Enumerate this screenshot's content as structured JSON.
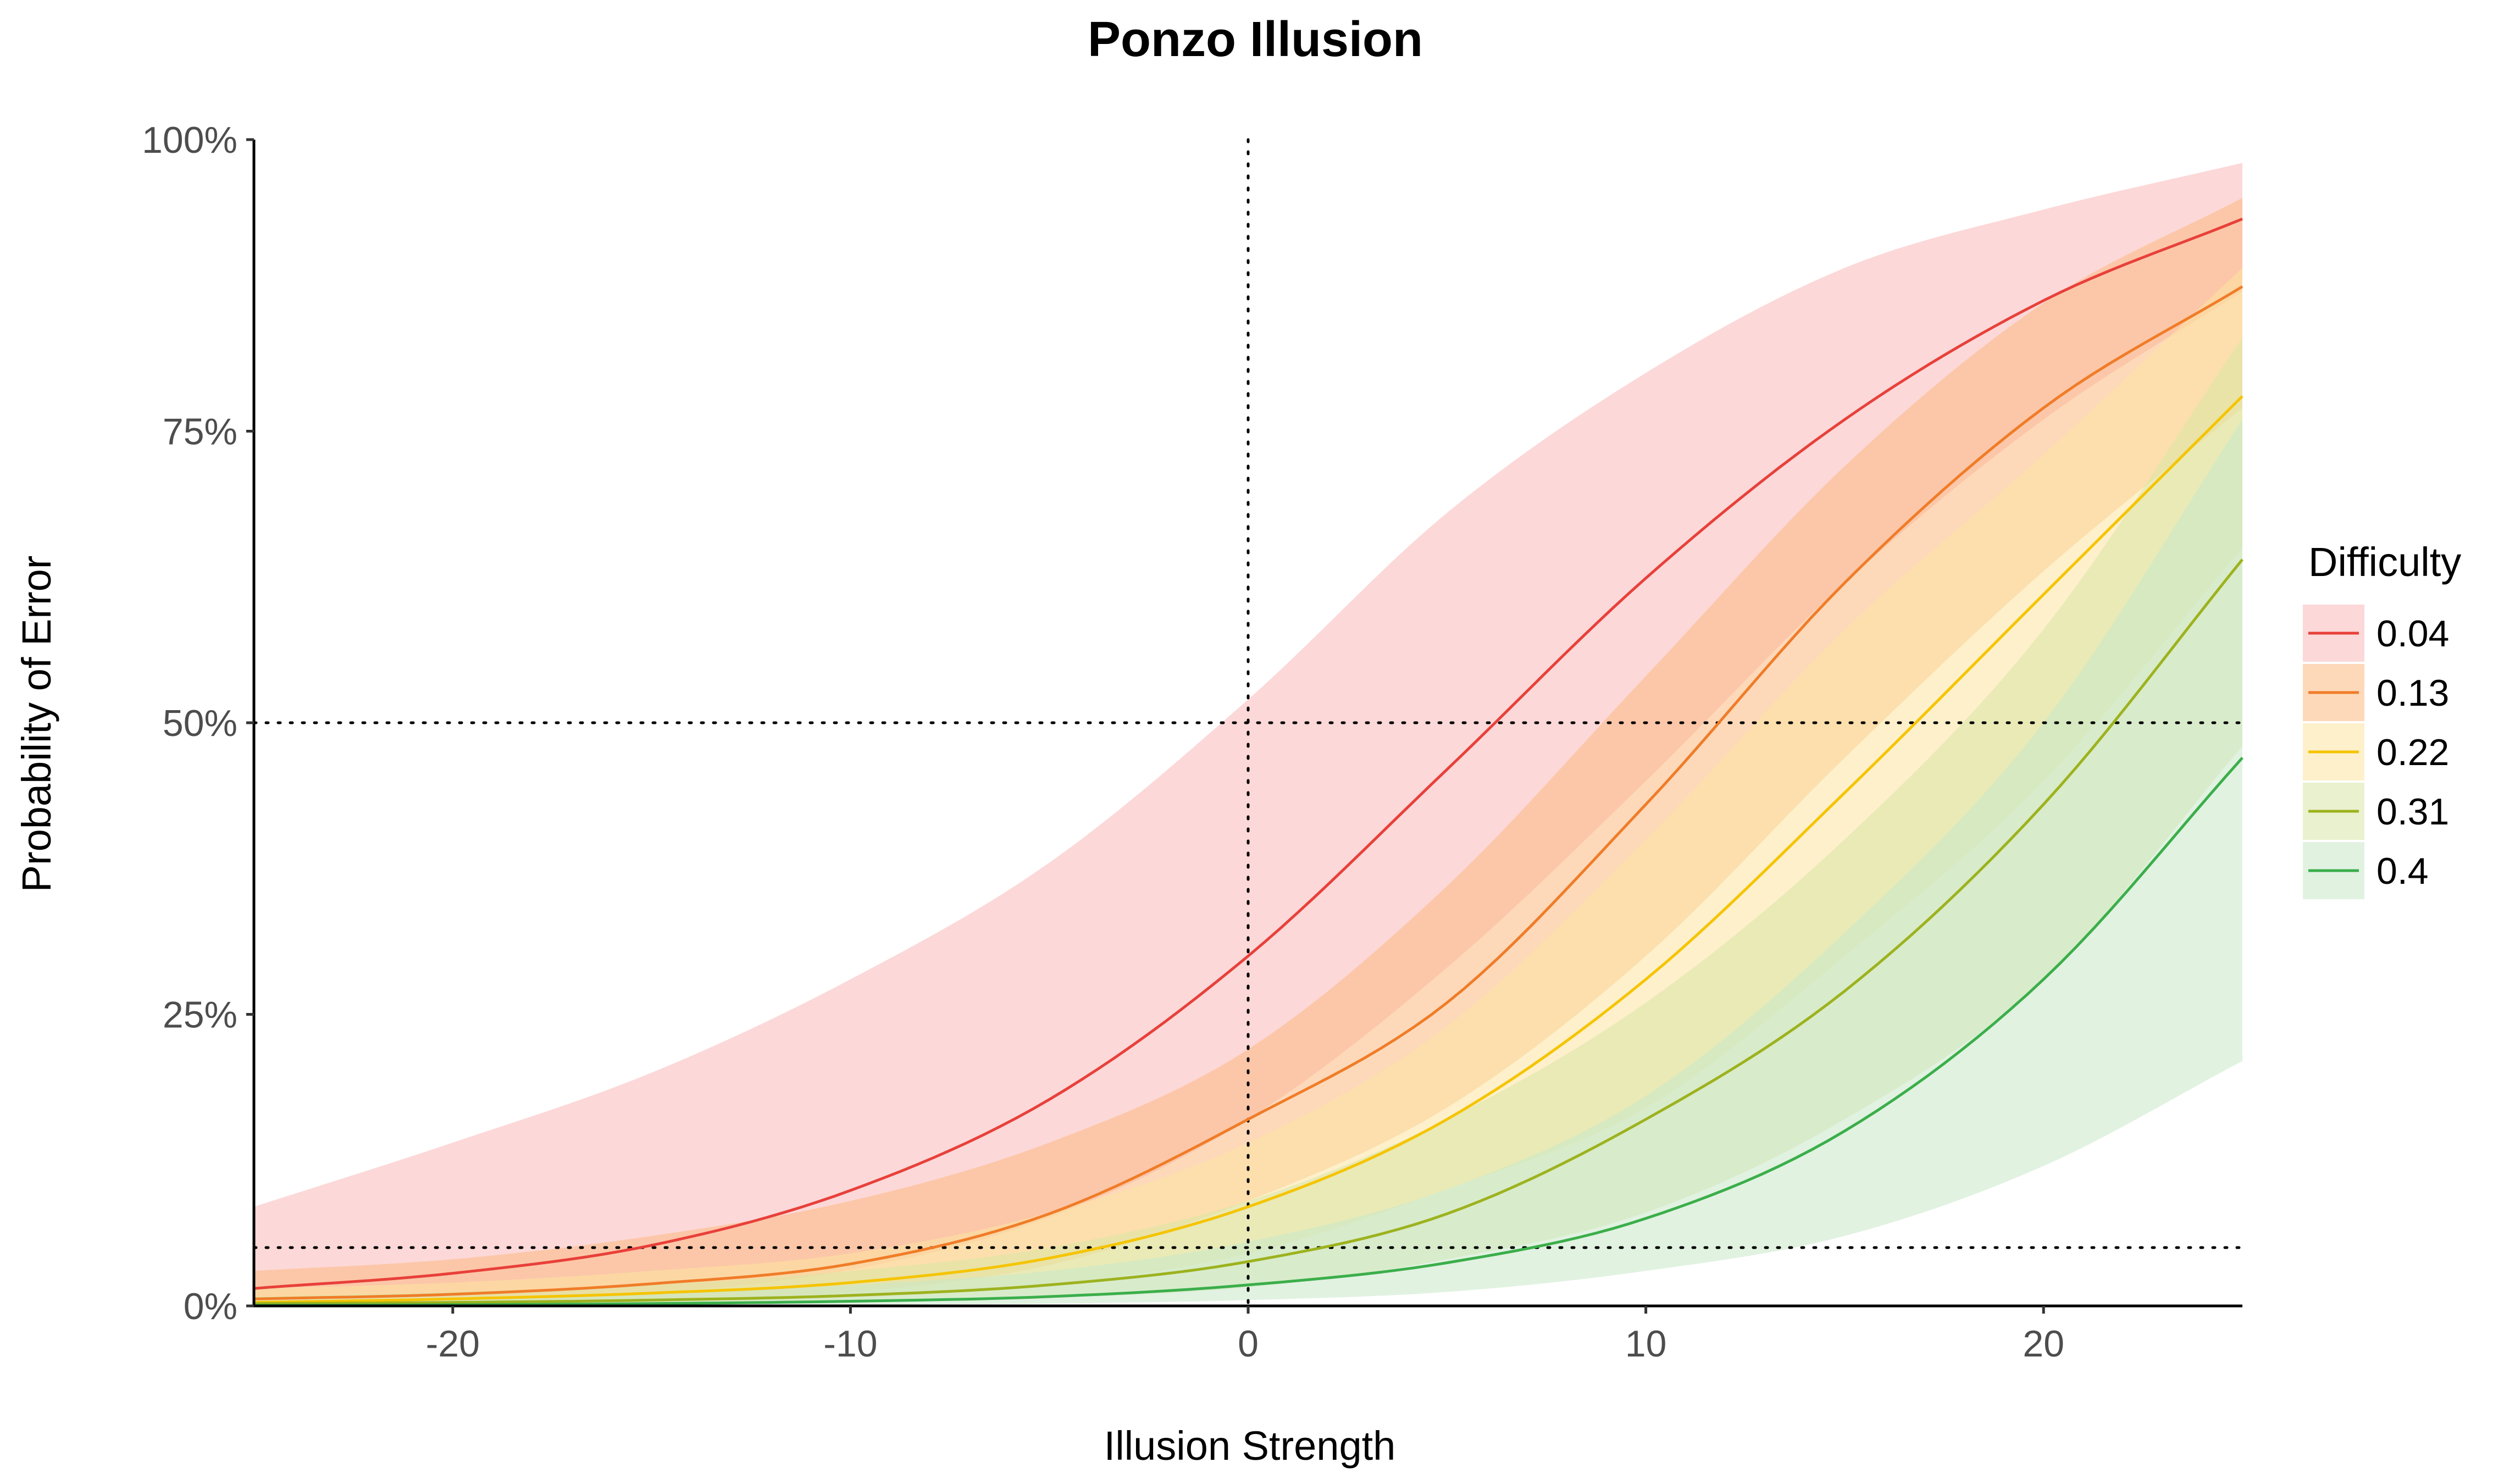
{
  "chart_data": {
    "type": "line",
    "title": "Ponzo Illusion",
    "xlabel": "Illusion Strength",
    "ylabel": "Probability of Error",
    "xlim": [
      -25,
      25
    ],
    "ylim": [
      0,
      1
    ],
    "x_ticks": [
      {
        "value": -20,
        "label": "-20"
      },
      {
        "value": -10,
        "label": "-10"
      },
      {
        "value": 0,
        "label": "0"
      },
      {
        "value": 10,
        "label": "10"
      },
      {
        "value": 20,
        "label": "20"
      }
    ],
    "y_ticks": [
      {
        "value": 0,
        "label": "0%"
      },
      {
        "value": 0.25,
        "label": "25%"
      },
      {
        "value": 0.5,
        "label": "50%"
      },
      {
        "value": 0.75,
        "label": "75%"
      },
      {
        "value": 1,
        "label": "100%"
      }
    ],
    "reference_lines": {
      "vertical": [
        0
      ],
      "horizontal": [
        0.5,
        0.05
      ],
      "style": "dotted"
    },
    "grid": false,
    "legend": {
      "title": "Difficulty",
      "position": "right"
    },
    "x": [
      -25,
      -20,
      -15,
      -10,
      -5,
      0,
      5,
      10,
      15,
      20,
      25
    ],
    "series": [
      {
        "name": "0.04",
        "color": "#e8403a",
        "fill": "#f9b8b8",
        "values": [
          0.015,
          0.028,
          0.052,
          0.099,
          0.177,
          0.3,
          0.46,
          0.624,
          0.76,
          0.862,
          0.932
        ],
        "lower": [
          0.001,
          0.004,
          0.011,
          0.031,
          0.076,
          0.16,
          0.29,
          0.45,
          0.62,
          0.76,
          0.87
        ],
        "upper": [
          0.085,
          0.14,
          0.2,
          0.28,
          0.38,
          0.52,
          0.68,
          0.8,
          0.89,
          0.94,
          0.98
        ]
      },
      {
        "name": "0.13",
        "color": "#f07c28",
        "fill": "#fbb982",
        "values": [
          0.006,
          0.01,
          0.019,
          0.036,
          0.079,
          0.16,
          0.26,
          0.43,
          0.62,
          0.77,
          0.874
        ],
        "lower": [
          0.001,
          0.002,
          0.006,
          0.012,
          0.035,
          0.09,
          0.17,
          0.3,
          0.47,
          0.63,
          0.77
        ],
        "upper": [
          0.03,
          0.04,
          0.06,
          0.09,
          0.14,
          0.22,
          0.36,
          0.54,
          0.72,
          0.86,
          0.95
        ]
      },
      {
        "name": "0.22",
        "color": "#f5c400",
        "fill": "#fbe3a0",
        "values": [
          0.003,
          0.006,
          0.011,
          0.02,
          0.041,
          0.085,
          0.16,
          0.28,
          0.44,
          0.61,
          0.78
        ],
        "lower": [
          0.0005,
          0.001,
          0.003,
          0.007,
          0.018,
          0.045,
          0.1,
          0.17,
          0.3,
          0.45,
          0.65
        ],
        "upper": [
          0.015,
          0.02,
          0.03,
          0.045,
          0.08,
          0.14,
          0.24,
          0.4,
          0.58,
          0.73,
          0.89
        ]
      },
      {
        "name": "0.31",
        "color": "#9db21e",
        "fill": "#d9e5a6",
        "values": [
          0.002,
          0.003,
          0.005,
          0.009,
          0.018,
          0.038,
          0.079,
          0.16,
          0.27,
          0.43,
          0.64
        ],
        "lower": [
          0.0002,
          0.0005,
          0.001,
          0.003,
          0.007,
          0.016,
          0.04,
          0.08,
          0.16,
          0.28,
          0.48
        ],
        "upper": [
          0.008,
          0.012,
          0.018,
          0.03,
          0.05,
          0.09,
          0.16,
          0.26,
          0.4,
          0.58,
          0.83
        ]
      },
      {
        "name": "0.4",
        "color": "#3bae4a",
        "fill": "#c9e7c8",
        "values": [
          0.0005,
          0.001,
          0.002,
          0.004,
          0.008,
          0.018,
          0.037,
          0.075,
          0.15,
          0.28,
          0.47
        ],
        "lower": [
          0.0001,
          0.0002,
          0.0004,
          0.001,
          0.002,
          0.005,
          0.012,
          0.03,
          0.06,
          0.12,
          0.21
        ],
        "upper": [
          0.004,
          0.006,
          0.01,
          0.018,
          0.03,
          0.055,
          0.1,
          0.18,
          0.32,
          0.5,
          0.76
        ]
      }
    ]
  }
}
